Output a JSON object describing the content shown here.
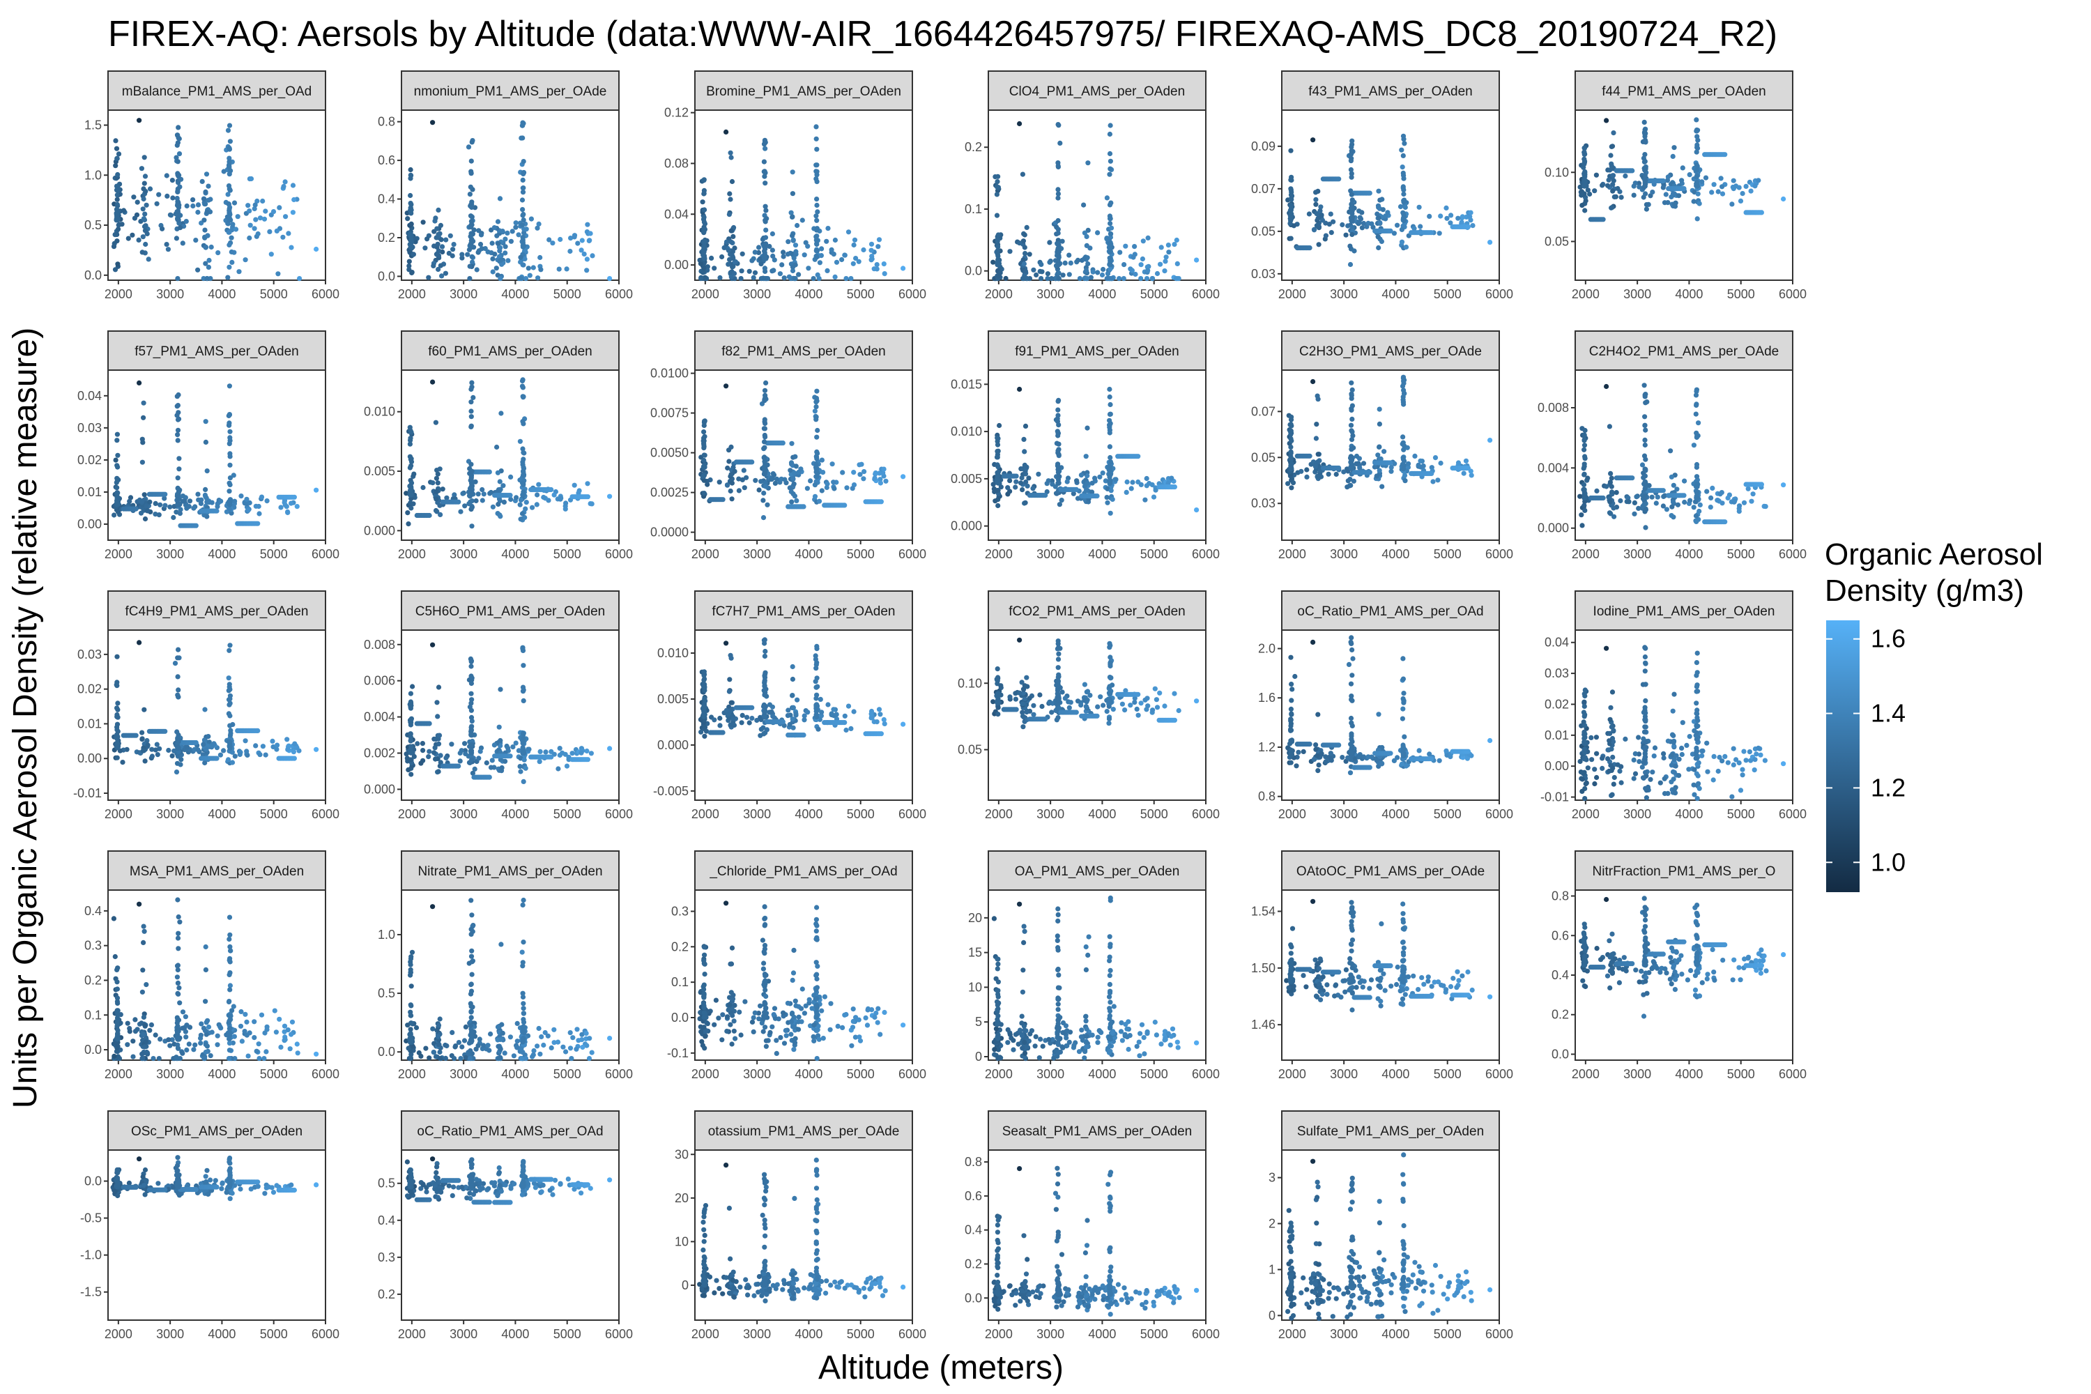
{
  "chart_data": {
    "type": "scatter",
    "title": "FIREX-AQ: Aersols by Altitude (data:WWW-AIR_1664426457975/ FIREXAQ-AMS_DC8_20190724_R2)",
    "xlabel": "Altitude (meters)",
    "ylabel": "Units per Organic Aerosol Density (relative measure)",
    "xlim": [
      1800,
      6000
    ],
    "x_ticks": [
      2000,
      3000,
      4000,
      5000,
      6000
    ],
    "legend": {
      "title_lines": [
        "Organic Aerosol",
        "Density (g/m3)"
      ],
      "range": [
        0.92,
        1.65
      ],
      "ticks": [
        1.0,
        1.2,
        1.4,
        1.6
      ],
      "low_color": "#132B43",
      "high_color": "#56B1F7",
      "placement": "right"
    },
    "panels": [
      {
        "label": "mBalance_PM1_AMS_per_OAd",
        "ylim": [
          -0.05,
          1.65
        ],
        "yticks": [
          0.0,
          0.5,
          1.0,
          1.5
        ],
        "base": 0.55,
        "spread": 0.3,
        "peak": 1.6,
        "profile": "dense"
      },
      {
        "label": "nmonium_PM1_AMS_per_OAde",
        "ylim": [
          -0.02,
          0.86
        ],
        "yticks": [
          0.0,
          0.2,
          0.4,
          0.6,
          0.8
        ],
        "base": 0.15,
        "spread": 0.1,
        "peak": 0.83,
        "profile": "dense"
      },
      {
        "label": "Bromine_PM1_AMS_per_OAden",
        "ylim": [
          -0.012,
          0.122
        ],
        "yticks": [
          0.0,
          0.04,
          0.08,
          0.12
        ],
        "base": 0.005,
        "spread": 0.015,
        "peak": 0.11,
        "profile": "dense"
      },
      {
        "label": "ClO4_PM1_AMS_per_OAden",
        "ylim": [
          -0.015,
          0.26
        ],
        "yticks": [
          0.0,
          0.1,
          0.2
        ],
        "base": 0.01,
        "spread": 0.03,
        "peak": 0.25,
        "profile": "dense"
      },
      {
        "label": "f43_PM1_AMS_per_OAden",
        "ylim": [
          0.027,
          0.107
        ],
        "yticks": [
          0.03,
          0.05,
          0.07,
          0.09
        ],
        "base": 0.055,
        "spread": 0.012,
        "peak": 0.095,
        "profile": "levels"
      },
      {
        "label": "f44_PM1_AMS_per_OAden",
        "ylim": [
          0.022,
          0.145
        ],
        "yticks": [
          0.05,
          0.1
        ],
        "base": 0.09,
        "spread": 0.015,
        "peak": 0.14,
        "profile": "levels"
      },
      {
        "label": "f57_PM1_AMS_per_OAden",
        "ylim": [
          -0.005,
          0.048
        ],
        "yticks": [
          0.0,
          0.01,
          0.02,
          0.03,
          0.04
        ],
        "base": 0.006,
        "spread": 0.004,
        "peak": 0.046,
        "profile": "levels"
      },
      {
        "label": "f60_PM1_AMS_per_OAden",
        "ylim": [
          -0.0008,
          0.0135
        ],
        "yticks": [
          0.0,
          0.005,
          0.01
        ],
        "base": 0.003,
        "spread": 0.002,
        "peak": 0.013,
        "profile": "levels"
      },
      {
        "label": "f82_PM1_AMS_per_OAden",
        "ylim": [
          -0.0005,
          0.0102
        ],
        "yticks": [
          0.0,
          0.0025,
          0.005,
          0.0075,
          0.01
        ],
        "base": 0.0035,
        "spread": 0.0015,
        "peak": 0.0095,
        "profile": "levels"
      },
      {
        "label": "f91_PM1_AMS_per_OAden",
        "ylim": [
          -0.0015,
          0.0165
        ],
        "yticks": [
          0.0,
          0.005,
          0.01,
          0.015
        ],
        "base": 0.0045,
        "spread": 0.002,
        "peak": 0.015,
        "profile": "levels"
      },
      {
        "label": "C2H3O_PM1_AMS_per_OAde",
        "ylim": [
          0.014,
          0.088
        ],
        "yticks": [
          0.03,
          0.05,
          0.07
        ],
        "base": 0.045,
        "spread": 0.008,
        "peak": 0.085,
        "profile": "levels"
      },
      {
        "label": "C2H4O2_PM1_AMS_per_OAde",
        "ylim": [
          -0.0008,
          0.0105
        ],
        "yticks": [
          0.0,
          0.004,
          0.008
        ],
        "base": 0.002,
        "spread": 0.0015,
        "peak": 0.0098,
        "profile": "levels"
      },
      {
        "label": "fC4H9_PM1_AMS_per_OAden",
        "ylim": [
          -0.012,
          0.037
        ],
        "yticks": [
          -0.01,
          0.0,
          0.01,
          0.02,
          0.03
        ],
        "base": 0.003,
        "spread": 0.004,
        "peak": 0.035,
        "profile": "levels"
      },
      {
        "label": "C5H6O_PM1_AMS_per_OAden",
        "ylim": [
          -0.0006,
          0.0088
        ],
        "yticks": [
          0.0,
          0.002,
          0.004,
          0.006,
          0.008
        ],
        "base": 0.002,
        "spread": 0.001,
        "peak": 0.0083,
        "profile": "levels"
      },
      {
        "label": "fC7H7_PM1_AMS_per_OAden",
        "ylim": [
          -0.006,
          0.0125
        ],
        "yticks": [
          -0.005,
          0.0,
          0.005,
          0.01
        ],
        "base": 0.003,
        "spread": 0.002,
        "peak": 0.0115,
        "profile": "levels"
      },
      {
        "label": "fCO2_PM1_AMS_per_OAden",
        "ylim": [
          0.012,
          0.14
        ],
        "yticks": [
          0.05,
          0.1
        ],
        "base": 0.085,
        "spread": 0.015,
        "peak": 0.135,
        "profile": "levels"
      },
      {
        "label": "oC_Ratio_PM1_AMS_per_OAd",
        "ylim": [
          0.77,
          2.15
        ],
        "yticks": [
          0.8,
          1.2,
          1.6,
          2.0
        ],
        "base": 1.13,
        "spread": 0.08,
        "peak": 2.1,
        "profile": "levels"
      },
      {
        "label": "Iodine_PM1_AMS_per_OAden",
        "ylim": [
          -0.011,
          0.044
        ],
        "yticks": [
          -0.01,
          0.0,
          0.01,
          0.02,
          0.03,
          0.04
        ],
        "base": 0.002,
        "spread": 0.006,
        "peak": 0.04,
        "profile": "dense"
      },
      {
        "label": "MSA_PM1_AMS_per_OAden",
        "ylim": [
          -0.03,
          0.46
        ],
        "yticks": [
          0.0,
          0.1,
          0.2,
          0.3,
          0.4
        ],
        "base": 0.03,
        "spread": 0.05,
        "peak": 0.44,
        "profile": "dense"
      },
      {
        "label": "Nitrate_PM1_AMS_per_OAden",
        "ylim": [
          -0.07,
          1.38
        ],
        "yticks": [
          0.0,
          0.5,
          1.0
        ],
        "base": 0.08,
        "spread": 0.1,
        "peak": 1.3,
        "profile": "dense"
      },
      {
        "label": "_Chloride_PM1_AMS_per_OAd",
        "ylim": [
          -0.12,
          0.36
        ],
        "yticks": [
          -0.1,
          0.0,
          0.1,
          0.2,
          0.3
        ],
        "base": 0.0,
        "spread": 0.04,
        "peak": 0.34,
        "profile": "dense"
      },
      {
        "label": "OA_PM1_AMS_per_OAden",
        "ylim": [
          -0.5,
          24
        ],
        "yticks": [
          0,
          5,
          10,
          15,
          20
        ],
        "base": 2.5,
        "spread": 1.5,
        "peak": 23,
        "profile": "dense"
      },
      {
        "label": "OAtoOC_PM1_AMS_per_OAde",
        "ylim": [
          1.435,
          1.555
        ],
        "yticks": [
          1.46,
          1.5,
          1.54
        ],
        "base": 1.49,
        "spread": 0.015,
        "peak": 1.55,
        "profile": "levels"
      },
      {
        "label": "NitrFraction_PM1_AMS_per_O",
        "ylim": [
          -0.03,
          0.83
        ],
        "yticks": [
          0.0,
          0.2,
          0.4,
          0.6,
          0.8
        ],
        "base": 0.45,
        "spread": 0.15,
        "peak": 0.8,
        "profile": "levels"
      },
      {
        "label": "OSc_PM1_AMS_per_OAden",
        "ylim": [
          -1.88,
          0.42
        ],
        "yticks": [
          -1.5,
          -1.0,
          -0.5,
          0.0
        ],
        "base": -0.08,
        "spread": 0.1,
        "peak": 0.32,
        "profile": "levels"
      },
      {
        "label": "oC_Ratio_PM1_AMS_per_OAd",
        "ylim": [
          0.13,
          0.59
        ],
        "yticks": [
          0.2,
          0.3,
          0.4,
          0.5
        ],
        "base": 0.49,
        "spread": 0.03,
        "peak": 0.57,
        "profile": "levels"
      },
      {
        "label": "otassium_PM1_AMS_per_OAde",
        "ylim": [
          -8,
          31
        ],
        "yticks": [
          0,
          10,
          20,
          30
        ],
        "base": 0.0,
        "spread": 1.5,
        "peak": 29,
        "profile": "dense"
      },
      {
        "label": "Seasalt_PM1_AMS_per_OAden",
        "ylim": [
          -0.13,
          0.87
        ],
        "yticks": [
          0.0,
          0.2,
          0.4,
          0.6,
          0.8
        ],
        "base": 0.02,
        "spread": 0.04,
        "peak": 0.8,
        "profile": "dense"
      },
      {
        "label": "Sulfate_PM1_AMS_per_OAden",
        "ylim": [
          -0.1,
          3.6
        ],
        "yticks": [
          0,
          1,
          2,
          3
        ],
        "base": 0.6,
        "spread": 0.35,
        "peak": 3.5,
        "profile": "dense"
      }
    ]
  }
}
